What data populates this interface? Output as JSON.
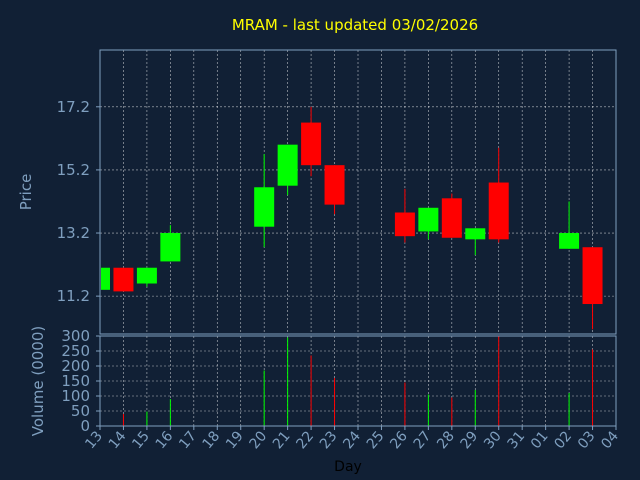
{
  "chart_data": {
    "type": "candlestick",
    "title": "MRAM - last updated 03/02/2026",
    "xlabel": "Day",
    "ylabel_price": "Price",
    "ylabel_volume": "Volume (0000)",
    "x_ticks": [
      "13",
      "14",
      "15",
      "16",
      "17",
      "18",
      "19",
      "20",
      "21",
      "22",
      "23",
      "24",
      "25",
      "26",
      "27",
      "28",
      "29",
      "30",
      "31",
      "01",
      "02",
      "03",
      "04"
    ],
    "price_ticks": [
      "11.2",
      "13.2",
      "15.2",
      "17.2"
    ],
    "price_range": [
      10.0,
      19.0
    ],
    "volume_ticks": [
      "0",
      "50",
      "100",
      "150",
      "200",
      "250",
      "300"
    ],
    "volume_range": [
      0,
      300
    ],
    "colors": {
      "up": "#00ff00",
      "down": "#ff0000",
      "title": "#ffff00",
      "axis": "#7f9fbf",
      "background": "#112035"
    },
    "candles": [
      {
        "day": "13",
        "open": 11.4,
        "close": 12.1,
        "high": 12.1,
        "low": 11.4,
        "volume": 25
      },
      {
        "day": "14",
        "open": 12.1,
        "close": 11.35,
        "high": 12.1,
        "low": 11.35,
        "volume": 40
      },
      {
        "day": "15",
        "open": 11.6,
        "close": 12.1,
        "high": 12.1,
        "low": 11.5,
        "volume": 48
      },
      {
        "day": "16",
        "open": 12.3,
        "close": 13.2,
        "high": 13.45,
        "low": 12.3,
        "volume": 90
      },
      {
        "day": "20",
        "open": 13.4,
        "close": 14.65,
        "high": 15.7,
        "low": 12.75,
        "volume": 185
      },
      {
        "day": "21",
        "open": 14.7,
        "close": 16.0,
        "high": 16.0,
        "low": 14.4,
        "volume": 295
      },
      {
        "day": "22",
        "open": 16.7,
        "close": 15.35,
        "high": 17.2,
        "low": 15.0,
        "volume": 235
      },
      {
        "day": "23",
        "open": 15.35,
        "close": 14.1,
        "high": 15.35,
        "low": 13.8,
        "volume": 160
      },
      {
        "day": "26",
        "open": 13.85,
        "close": 13.1,
        "high": 14.6,
        "low": 12.9,
        "volume": 145
      },
      {
        "day": "27",
        "open": 13.25,
        "close": 14.0,
        "high": 14.0,
        "low": 13.0,
        "volume": 105
      },
      {
        "day": "28",
        "open": 14.3,
        "close": 13.05,
        "high": 14.45,
        "low": 13.05,
        "volume": 95
      },
      {
        "day": "29",
        "open": 13.0,
        "close": 13.35,
        "high": 13.35,
        "low": 12.5,
        "volume": 120
      },
      {
        "day": "30",
        "open": 14.8,
        "close": 13.0,
        "high": 15.9,
        "low": 12.9,
        "volume": 300
      },
      {
        "day": "02",
        "open": 12.7,
        "close": 13.2,
        "high": 14.2,
        "low": 12.7,
        "volume": 110
      },
      {
        "day": "03",
        "open": 12.75,
        "close": 10.95,
        "high": 12.75,
        "low": 10.15,
        "volume": 255
      }
    ]
  }
}
